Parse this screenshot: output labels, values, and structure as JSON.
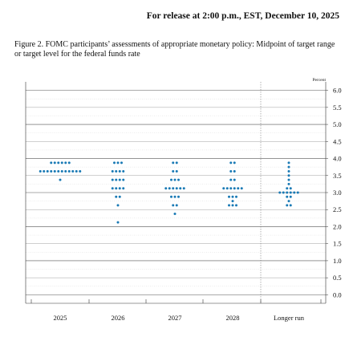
{
  "header": {
    "release_text": "For release at 2:00 p.m., EST, December 10, 2025",
    "figure_title": "Figure 2. FOMC participants’ assessments of appropriate monetary policy: Midpoint of target range or target level for the federal funds rate"
  },
  "chart_data": {
    "type": "scatter",
    "unit_label": "Percent",
    "categories": [
      "2025",
      "2026",
      "2027",
      "2028",
      "Longer run"
    ],
    "ylim": [
      -0.25,
      6.25
    ],
    "yticks": [
      0.0,
      0.5,
      1.0,
      1.5,
      2.0,
      2.5,
      3.0,
      3.5,
      4.0,
      4.5,
      5.0,
      5.5,
      6.0
    ],
    "ytick_labels": [
      "0.0",
      "0.5",
      "1.0",
      "1.5",
      "2.0",
      "2.5",
      "3.0",
      "3.5",
      "4.0",
      "4.5",
      "5.0",
      "5.5",
      "6.0"
    ],
    "grid": "horizontal",
    "dot_color": "#1a7ab5",
    "series": [
      {
        "category": "2025",
        "counts": [
          {
            "y": 3.875,
            "n": 6
          },
          {
            "y": 3.625,
            "n": 12
          },
          {
            "y": 3.375,
            "n": 1
          }
        ]
      },
      {
        "category": "2026",
        "counts": [
          {
            "y": 3.875,
            "n": 3
          },
          {
            "y": 3.625,
            "n": 4
          },
          {
            "y": 3.375,
            "n": 4
          },
          {
            "y": 3.125,
            "n": 4
          },
          {
            "y": 2.875,
            "n": 2
          },
          {
            "y": 2.625,
            "n": 1
          },
          {
            "y": 2.125,
            "n": 1
          }
        ]
      },
      {
        "category": "2027",
        "counts": [
          {
            "y": 3.875,
            "n": 2
          },
          {
            "y": 3.625,
            "n": 2
          },
          {
            "y": 3.375,
            "n": 3
          },
          {
            "y": 3.125,
            "n": 6
          },
          {
            "y": 2.875,
            "n": 3
          },
          {
            "y": 2.625,
            "n": 2
          },
          {
            "y": 2.375,
            "n": 1
          }
        ]
      },
      {
        "category": "2028",
        "counts": [
          {
            "y": 3.875,
            "n": 2
          },
          {
            "y": 3.625,
            "n": 2
          },
          {
            "y": 3.375,
            "n": 2
          },
          {
            "y": 3.125,
            "n": 6
          },
          {
            "y": 2.875,
            "n": 3
          },
          {
            "y": 2.75,
            "n": 1
          },
          {
            "y": 2.625,
            "n": 3
          }
        ]
      },
      {
        "category": "Longer run",
        "counts": [
          {
            "y": 3.875,
            "n": 1
          },
          {
            "y": 3.75,
            "n": 1
          },
          {
            "y": 3.625,
            "n": 1
          },
          {
            "y": 3.5,
            "n": 1
          },
          {
            "y": 3.375,
            "n": 1
          },
          {
            "y": 3.25,
            "n": 1
          },
          {
            "y": 3.125,
            "n": 2
          },
          {
            "y": 3.0,
            "n": 6
          },
          {
            "y": 2.875,
            "n": 2
          },
          {
            "y": 2.75,
            "n": 1
          },
          {
            "y": 2.625,
            "n": 2
          }
        ]
      }
    ]
  }
}
